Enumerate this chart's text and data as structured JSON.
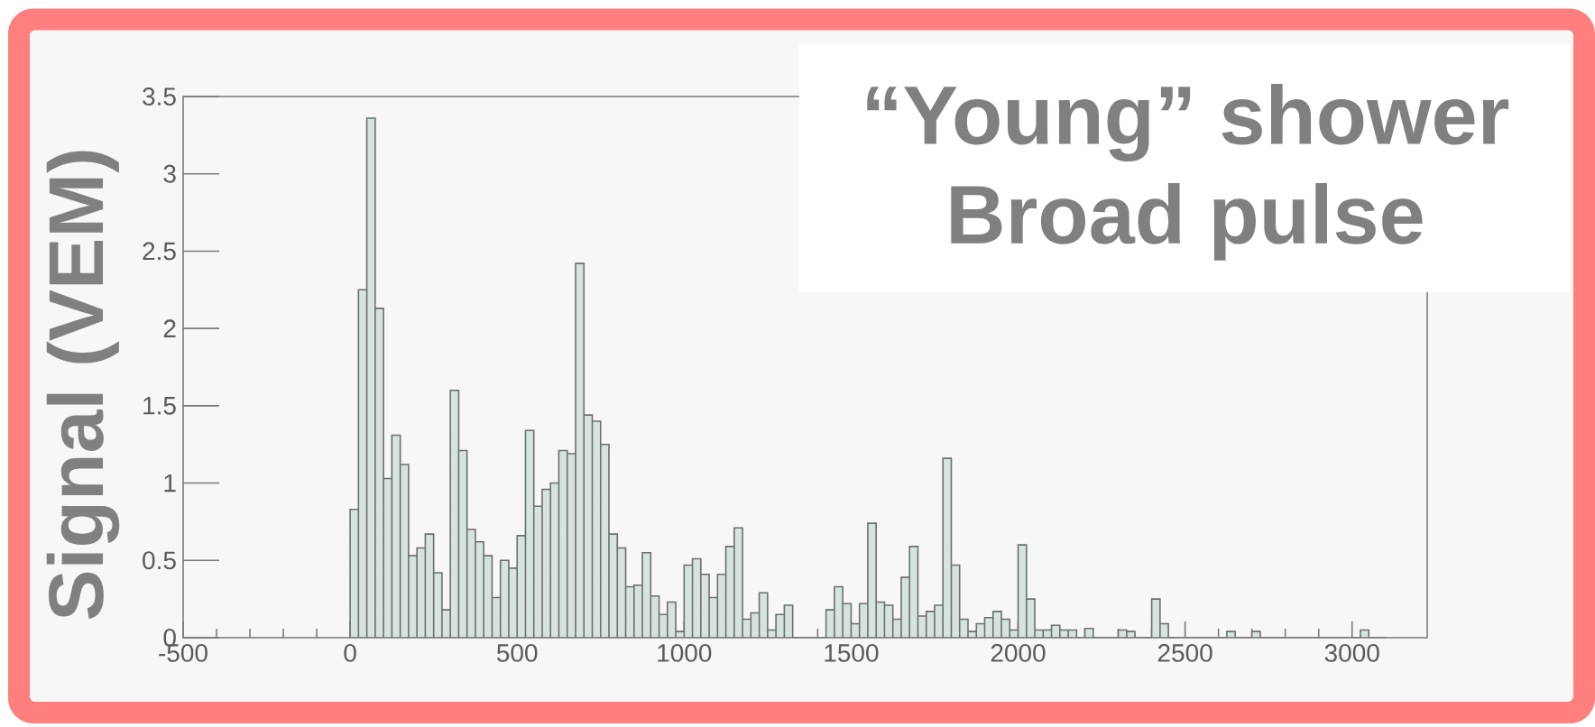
{
  "chart_data": {
    "type": "histogram",
    "ylabel": "Signal (VEM)",
    "annotations": [
      "“Young” shower",
      "Broad pulse"
    ],
    "bins": [
      0,
      25,
      50,
      75,
      100,
      125,
      150,
      175,
      200,
      225,
      250,
      275,
      300,
      325,
      350,
      375,
      400,
      425,
      450,
      475,
      500,
      525,
      550,
      575,
      600,
      625,
      650,
      675,
      700,
      725,
      750,
      775,
      800,
      825,
      850,
      875,
      900,
      925,
      950,
      975,
      1000,
      1025,
      1050,
      1075,
      1100,
      1125,
      1150,
      1175,
      1200,
      1225,
      1250,
      1275,
      1300,
      1325,
      1350,
      1375,
      1400,
      1425,
      1450,
      1475,
      1500,
      1525,
      1550,
      1575,
      1600,
      1625,
      1650,
      1675,
      1700,
      1725,
      1750,
      1775,
      1800,
      1825,
      1850,
      1875,
      1900,
      1925,
      1950,
      1975,
      2000,
      2025,
      2050,
      2075,
      2100,
      2125,
      2150,
      2175,
      2200,
      2225,
      2250,
      2275,
      2300,
      2325,
      2350,
      2375,
      2400,
      2425,
      2450,
      2475,
      2500,
      2525,
      2550,
      2575,
      2600,
      2625,
      2650,
      2675,
      2700,
      2725,
      2750,
      2775,
      2800,
      2825,
      2850,
      2875,
      2900,
      2925,
      2950,
      2975,
      3000,
      3025,
      3050,
      3075,
      3100
    ],
    "values": [
      0.83,
      2.25,
      3.36,
      2.13,
      1.03,
      1.31,
      1.12,
      0.53,
      0.58,
      0.67,
      0.42,
      0.18,
      1.6,
      1.21,
      0.7,
      0.62,
      0.53,
      0.26,
      0.5,
      0.45,
      0.66,
      1.34,
      0.85,
      0.96,
      1.0,
      1.21,
      1.19,
      2.42,
      1.44,
      1.4,
      1.25,
      0.67,
      0.58,
      0.33,
      0.34,
      0.55,
      0.27,
      0.15,
      0.23,
      0.04,
      0.47,
      0.51,
      0.41,
      0.26,
      0.41,
      0.59,
      0.71,
      0.12,
      0.16,
      0.29,
      0.05,
      0.15,
      0.21,
      0,
      0,
      0,
      0,
      0.18,
      0.33,
      0.22,
      0.09,
      0.22,
      0.74,
      0.23,
      0.21,
      0.12,
      0.39,
      0.59,
      0.14,
      0.17,
      0.21,
      1.16,
      0.47,
      0.12,
      0.04,
      0.09,
      0.13,
      0.17,
      0.12,
      0.05,
      0.6,
      0.25,
      0.05,
      0.05,
      0.08,
      0.05,
      0.05,
      0,
      0.06,
      0,
      0,
      0,
      0.05,
      0.04,
      0,
      0,
      0.25,
      0.09,
      0,
      0,
      0,
      0,
      0,
      0,
      0,
      0.04,
      0,
      0,
      0.04,
      0,
      0,
      0,
      0,
      0,
      0,
      0,
      0,
      0,
      0,
      0,
      0,
      0.05,
      0,
      0
    ],
    "color": "#d6e4e0",
    "xlim": [
      -500,
      3225
    ],
    "ylim": [
      0,
      3.5
    ],
    "xticks": [
      -500,
      0,
      500,
      1000,
      1500,
      2000,
      2500,
      3000
    ],
    "yticks": [
      0,
      0.5,
      1,
      1.5,
      2,
      2.5,
      3,
      3.5
    ]
  }
}
